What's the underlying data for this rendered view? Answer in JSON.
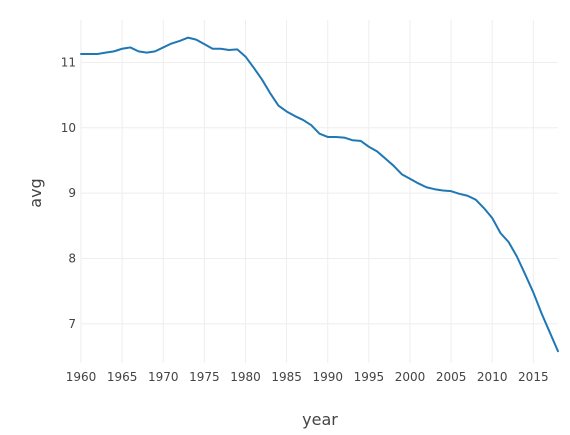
{
  "chart_data": {
    "type": "line",
    "xlabel": "year",
    "ylabel": "avg",
    "xlim": [
      1960,
      2018
    ],
    "ylim": [
      6.4,
      11.65
    ],
    "xticks": [
      1960,
      1965,
      1970,
      1975,
      1980,
      1985,
      1990,
      1995,
      2000,
      2005,
      2010,
      2015
    ],
    "yticks": [
      7,
      8,
      9,
      10,
      11
    ],
    "grid": true,
    "color": "#1f77b4",
    "x": [
      1960,
      1961,
      1962,
      1963,
      1964,
      1965,
      1966,
      1967,
      1968,
      1969,
      1970,
      1971,
      1972,
      1973,
      1974,
      1975,
      1976,
      1977,
      1978,
      1979,
      1980,
      1981,
      1982,
      1983,
      1984,
      1985,
      1986,
      1987,
      1988,
      1989,
      1990,
      1991,
      1992,
      1993,
      1994,
      1995,
      1996,
      1997,
      1998,
      1999,
      2000,
      2001,
      2002,
      2003,
      2004,
      2005,
      2006,
      2007,
      2008,
      2009,
      2010,
      2011,
      2012,
      2013,
      2014,
      2015,
      2016,
      2017,
      2018
    ],
    "y": [
      11.13,
      11.13,
      11.13,
      11.15,
      11.17,
      11.21,
      11.23,
      11.17,
      11.15,
      11.17,
      11.23,
      11.29,
      11.33,
      11.38,
      11.35,
      11.28,
      11.21,
      11.21,
      11.19,
      11.2,
      11.09,
      10.92,
      10.74,
      10.53,
      10.34,
      10.25,
      10.18,
      10.12,
      10.04,
      9.91,
      9.86,
      9.86,
      9.85,
      9.81,
      9.8,
      9.71,
      9.64,
      9.53,
      9.42,
      9.29,
      9.22,
      9.15,
      9.09,
      9.06,
      9.04,
      9.03,
      8.99,
      8.96,
      8.9,
      8.77,
      8.62,
      8.39,
      8.25,
      8.03,
      7.76,
      7.48,
      7.16,
      6.87,
      6.58
    ]
  }
}
